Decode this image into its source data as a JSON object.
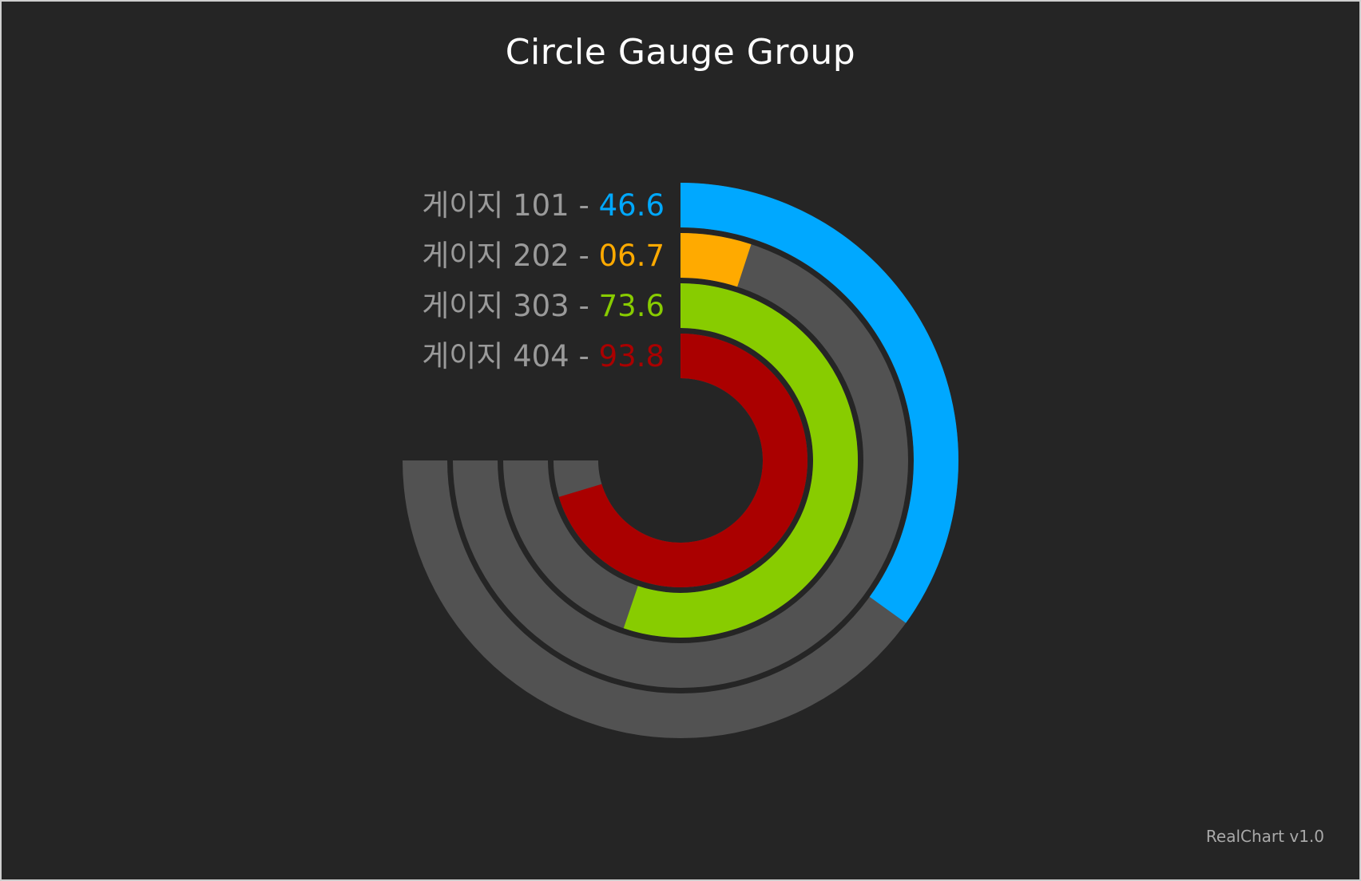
{
  "chart_data": {
    "type": "gauge",
    "title": "Circle Gauge Group",
    "min": 0,
    "max": 100,
    "sweep_degrees": 270,
    "start_position": "top",
    "track_color": "#525252",
    "series": [
      {
        "name": "게이지 101",
        "value": 46.6,
        "value_text": "46.6",
        "color": "#00a8ff"
      },
      {
        "name": "게이지 202",
        "value": 6.7,
        "value_text": "06.7",
        "color": "#ffaa00"
      },
      {
        "name": "게이지 303",
        "value": 73.6,
        "value_text": "73.6",
        "color": "#88cc00"
      },
      {
        "name": "게이지 404",
        "value": 93.8,
        "value_text": "93.8",
        "color": "#aa0000"
      }
    ]
  },
  "credit": "RealChart v1.0",
  "colors": {
    "background": "#252525",
    "label": "#9a9a9a",
    "title": "#ffffff"
  }
}
